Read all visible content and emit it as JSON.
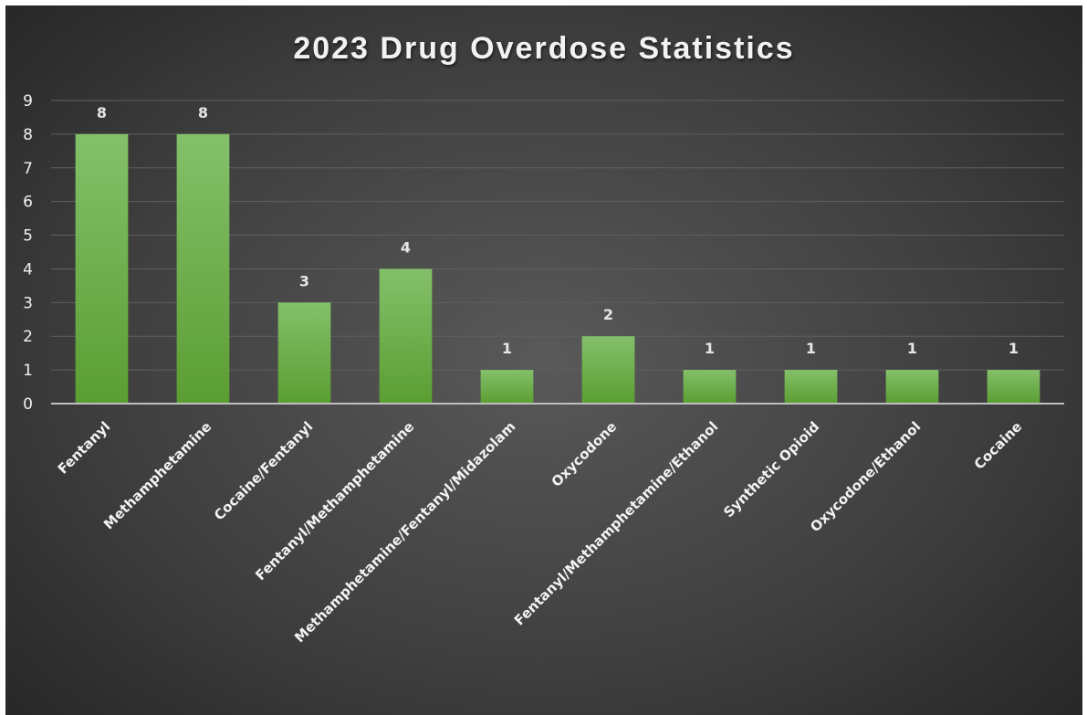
{
  "chart_data": {
    "type": "bar",
    "title": "2023 Drug Overdose Statistics",
    "xlabel": "",
    "ylabel": "",
    "categories": [
      "Fentanyl",
      "Methamphetamine",
      "Cocaine/Fentanyl",
      "Fentanyl/Methamphetamine",
      "Methamphetamine/Fentanyl/Midazolam",
      "Oxycodone",
      "Fentanyl/Methamphetamine/Ethanol",
      "Synthetic Opioid",
      "Oxycodone/Ethanol",
      "Cocaine"
    ],
    "values": [
      8,
      8,
      3,
      4,
      1,
      2,
      1,
      1,
      1,
      1
    ],
    "data_labels": [
      "8",
      "8",
      "3",
      "4",
      "1",
      "2",
      "1",
      "1",
      "1",
      "1"
    ],
    "ylim": [
      0,
      9
    ],
    "yticks": [
      "0",
      "1",
      "2",
      "3",
      "4",
      "5",
      "6",
      "7",
      "8",
      "9"
    ],
    "grid": true,
    "legend": "none",
    "colors": {
      "bar_top": "#84c06a",
      "bar_bottom": "#5a9e32",
      "background_center": "#595959",
      "background_edge": "#262626",
      "gridline": "#5f5f5f",
      "axis": "#bfbfbf",
      "text": "#f2f2f2"
    }
  }
}
